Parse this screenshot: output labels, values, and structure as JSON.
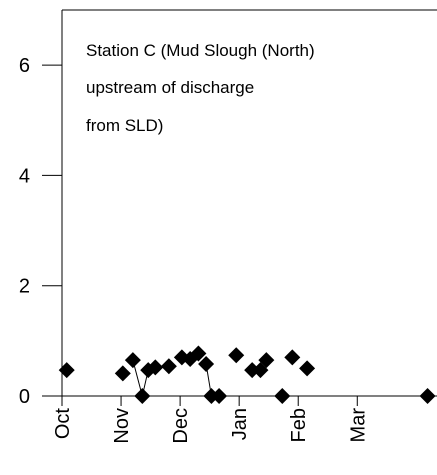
{
  "chart_data": {
    "type": "line",
    "annotation": [
      "Station C (Mud Slough (North)",
      "upstream of discharge",
      "from SLD)"
    ],
    "x": [
      0.08,
      null,
      1.03,
      null,
      1.2,
      1.36,
      1.46,
      null,
      1.58,
      null,
      1.81,
      null,
      2.03,
      null,
      2.17,
      null,
      2.31,
      null,
      2.44,
      2.53,
      null,
      2.66,
      null,
      2.95,
      null,
      3.22,
      null,
      3.36,
      null,
      3.46,
      null,
      3.73,
      null,
      3.9,
      null,
      4.15,
      null,
      6.19
    ],
    "values": [
      0.47,
      null,
      0.41,
      null,
      0.65,
      0,
      0.47,
      null,
      0.52,
      null,
      0.54,
      null,
      0.7,
      null,
      0.67,
      null,
      0.77,
      null,
      0.58,
      0,
      null,
      0,
      null,
      0.74,
      null,
      0.47,
      null,
      0.47,
      null,
      0.65,
      null,
      0,
      null,
      0.7,
      null,
      0.5,
      null,
      0
    ],
    "color": "#000000",
    "xlim": [
      0,
      6.35
    ],
    "xticks": [
      {
        "value": 0,
        "label": "Oct"
      },
      {
        "value": 1,
        "label": "Nov"
      },
      {
        "value": 2,
        "label": "Dec"
      },
      {
        "value": 3,
        "label": "Jan"
      },
      {
        "value": 4,
        "label": "Feb"
      },
      {
        "value": 5,
        "label": "Mar"
      }
    ],
    "ylim": [
      0,
      7
    ],
    "yticks": [
      0,
      2,
      4,
      6
    ]
  }
}
